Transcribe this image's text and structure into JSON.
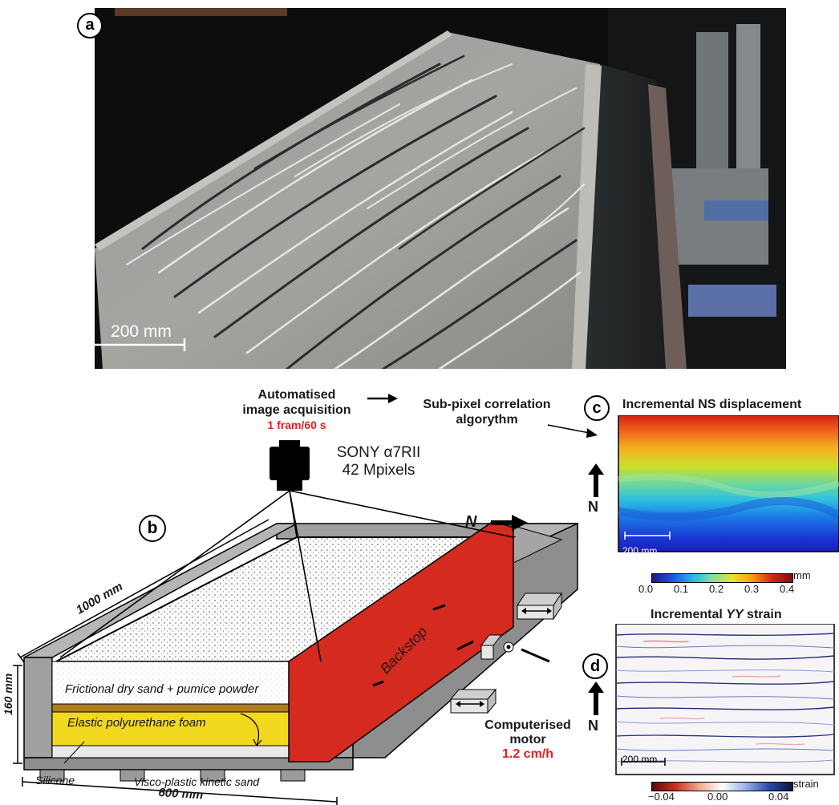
{
  "panels": {
    "a": "a",
    "b": "b",
    "c": "c",
    "d": "d"
  },
  "photo": {
    "scale_label": "200 mm"
  },
  "acquisition": {
    "line1": "Automatised",
    "line2": "image acquisition",
    "rate": "1 fram/60 s"
  },
  "correlation": {
    "line1": "Sub-pixel correlation",
    "line2": "algorythm"
  },
  "camera": {
    "model": "SONY α7RII",
    "resolution": "42 Mpixels"
  },
  "north_label": "N",
  "box": {
    "length": "1000 mm",
    "height": "160 mm",
    "width": "600 mm",
    "backstop": "Backstop",
    "layer_sand": "Frictional dry sand + pumice powder",
    "layer_foam": "Elastic polyurethane foam",
    "silicone": "Silicone",
    "kinetic_sand": "Visco-plastic kinetic sand"
  },
  "motor": {
    "line1": "Computerised",
    "line2": "motor",
    "speed": "1.2 cm/h"
  },
  "panel_c": {
    "title": "Incremental NS displacement",
    "scale_label": "200 mm",
    "unit": "mm",
    "ticks": [
      "0.0",
      "0.1",
      "0.2",
      "0.3",
      "0.4"
    ]
  },
  "panel_d": {
    "title_prefix": "Incremental ",
    "title_italic": "YY",
    "title_suffix": " strain",
    "scale_label": "200 mm",
    "unit": "strain",
    "ticks": [
      "−0.04",
      "0.00",
      "0.04"
    ]
  },
  "colors": {
    "backstop": "#d42a20",
    "foam": "#f2d81e",
    "kinetic": "#b07d1e",
    "frame": "#a9a9a9",
    "highlight": "#e02020"
  }
}
